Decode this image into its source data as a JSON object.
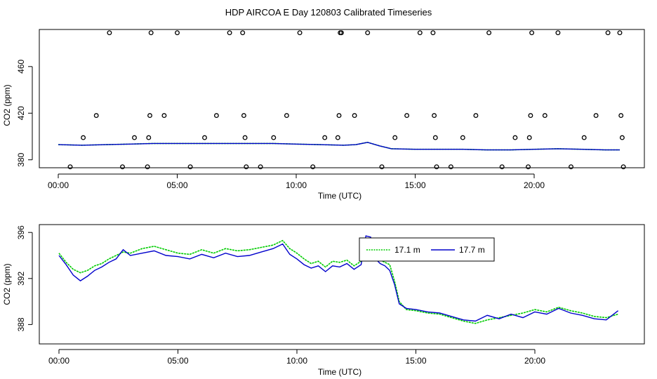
{
  "title": "HDP AIRCOA E  Day 120803  Calibrated Timeseries",
  "colors": {
    "green": "#00cc00",
    "blue": "#0000cc",
    "axis": "#000000"
  },
  "chart_data": [
    {
      "type": "line+scatter",
      "xlabel": "Time (UTC)",
      "ylabel": "CO2 (ppm)",
      "xlim": [
        0,
        24.5
      ],
      "ylim": [
        375,
        490
      ],
      "x_ticks": [
        0,
        5,
        10,
        15,
        20
      ],
      "x_tick_labels": [
        "00:00",
        "05:00",
        "10:00",
        "15:00",
        "20:00"
      ],
      "y_ticks": [
        380,
        420,
        460
      ],
      "y_tick_labels": [
        "380",
        "420",
        "460"
      ],
      "calibration_points": {
        "marker": "open-circle",
        "x": [
          0.5,
          1.05,
          1.6,
          2.15,
          2.7,
          3.2,
          3.75,
          3.8,
          3.85,
          3.9,
          4.45,
          5.0,
          5.55,
          6.15,
          6.65,
          7.2,
          7.75,
          7.8,
          7.85,
          7.9,
          8.5,
          9.05,
          9.6,
          10.15,
          10.7,
          11.2,
          11.75,
          11.8,
          11.85,
          11.9,
          12.45,
          13.0,
          13.6,
          14.15,
          14.65,
          15.2,
          15.75,
          15.8,
          15.85,
          15.9,
          16.5,
          17.0,
          17.55,
          18.1,
          18.65,
          19.2,
          19.75,
          19.8,
          19.85,
          19.9,
          20.45,
          21.0,
          21.55,
          22.1,
          22.6,
          23.1,
          23.6,
          23.65,
          23.7,
          23.75
        ],
        "y": [
          374,
          399,
          418,
          489,
          374,
          399,
          374,
          399,
          418,
          489,
          418,
          489,
          374,
          399,
          418,
          489,
          489,
          418,
          399,
          374,
          374,
          399,
          418,
          489,
          374,
          399,
          399,
          418,
          489,
          489,
          418,
          489,
          374,
          399,
          418,
          489,
          489,
          418,
          399,
          374,
          374,
          399,
          418,
          489,
          374,
          399,
          374,
          399,
          418,
          489,
          418,
          489,
          374,
          399,
          418,
          489,
          489,
          418,
          399,
          374
        ]
      },
      "series": [
        {
          "name": "17.1 m",
          "color": "#00cc00",
          "x": [
            0,
            1,
            2,
            3,
            4,
            5,
            6,
            7,
            8,
            9,
            10,
            11,
            12,
            12.5,
            13,
            13.5,
            14,
            15,
            16,
            17,
            18,
            19,
            20,
            21,
            22,
            23,
            23.6
          ],
          "values": [
            393,
            392.5,
            393,
            393.5,
            394,
            394,
            394,
            394,
            394,
            394,
            393.5,
            393,
            392.5,
            393,
            395,
            392,
            389.5,
            389,
            389,
            389,
            388.5,
            388.5,
            389,
            389.5,
            389,
            388.5,
            388.5
          ]
        },
        {
          "name": "17.7 m",
          "color": "#0000cc",
          "x": [
            0,
            1,
            2,
            3,
            4,
            5,
            6,
            7,
            8,
            9,
            10,
            11,
            12,
            12.5,
            13,
            13.5,
            14,
            15,
            16,
            17,
            18,
            19,
            20,
            21,
            22,
            23,
            23.6
          ],
          "values": [
            393,
            392.5,
            393,
            393.5,
            394,
            394,
            394,
            394,
            394,
            394,
            393.5,
            393,
            392.5,
            393,
            395,
            392,
            389.5,
            389,
            389,
            389,
            388.5,
            388.5,
            389,
            389.5,
            389,
            388.5,
            388.5
          ]
        }
      ]
    },
    {
      "type": "line",
      "xlabel": "Time (UTC)",
      "ylabel": "CO2 (ppm)",
      "xlim": [
        -0.8,
        24.3
      ],
      "ylim": [
        386.5,
        396.5
      ],
      "x_ticks": [
        0,
        5,
        10,
        15,
        20
      ],
      "x_tick_labels": [
        "00:00",
        "05:00",
        "10:00",
        "15:00",
        "20:00"
      ],
      "y_ticks": [
        388,
        392,
        396
      ],
      "y_tick_labels": [
        "388",
        "392",
        "396"
      ],
      "legend": {
        "position": "top-center"
      },
      "series": [
        {
          "name": "17.1 m",
          "color": "#00cc00",
          "x": [
            0,
            0.3,
            0.6,
            0.9,
            1.2,
            1.5,
            1.8,
            2.1,
            2.4,
            2.7,
            3.0,
            3.5,
            4.0,
            4.5,
            5.0,
            5.5,
            6.0,
            6.5,
            7.0,
            7.5,
            8.0,
            8.5,
            9.0,
            9.4,
            9.7,
            10.0,
            10.3,
            10.6,
            10.9,
            11.2,
            11.5,
            11.8,
            12.1,
            12.4,
            12.7,
            12.9,
            13.1,
            13.3,
            13.5,
            13.7,
            13.9,
            14.1,
            14.3,
            14.6,
            15.0,
            15.5,
            16.0,
            16.5,
            17.0,
            17.5,
            18.0,
            18.5,
            19.0,
            19.5,
            20.0,
            20.5,
            21.0,
            21.5,
            22.0,
            22.5,
            23.0,
            23.5
          ],
          "values": [
            394.2,
            393.4,
            392.8,
            392.5,
            392.7,
            393.1,
            393.3,
            393.7,
            394.0,
            394.3,
            394.2,
            394.6,
            394.8,
            394.5,
            394.2,
            394.1,
            394.5,
            394.2,
            394.6,
            394.4,
            394.5,
            394.7,
            394.9,
            395.3,
            394.6,
            394.2,
            393.7,
            393.3,
            393.5,
            393.0,
            393.5,
            393.4,
            393.6,
            393.1,
            393.5,
            395.4,
            395.3,
            394.0,
            393.6,
            393.4,
            393.2,
            391.8,
            390.0,
            389.3,
            389.2,
            389.0,
            388.9,
            388.6,
            388.3,
            388.1,
            388.4,
            388.6,
            388.8,
            389.0,
            389.3,
            389.1,
            389.5,
            389.2,
            389.0,
            388.7,
            388.6,
            388.9
          ]
        },
        {
          "name": "17.7 m",
          "color": "#0000cc",
          "x": [
            0,
            0.3,
            0.6,
            0.9,
            1.2,
            1.5,
            1.8,
            2.1,
            2.4,
            2.7,
            3.0,
            3.5,
            4.0,
            4.5,
            5.0,
            5.5,
            6.0,
            6.5,
            7.0,
            7.5,
            8.0,
            8.5,
            9.0,
            9.4,
            9.7,
            10.0,
            10.3,
            10.6,
            10.9,
            11.2,
            11.5,
            11.8,
            12.1,
            12.4,
            12.7,
            12.9,
            13.1,
            13.3,
            13.5,
            13.7,
            13.9,
            14.1,
            14.3,
            14.6,
            15.0,
            15.5,
            16.0,
            16.5,
            17.0,
            17.5,
            18.0,
            18.5,
            19.0,
            19.5,
            20.0,
            20.5,
            21.0,
            21.5,
            22.0,
            22.5,
            23.0,
            23.5
          ],
          "values": [
            394.0,
            393.2,
            392.3,
            391.8,
            392.2,
            392.7,
            393.0,
            393.4,
            393.7,
            394.5,
            394.0,
            394.2,
            394.4,
            394.0,
            393.9,
            393.7,
            394.1,
            393.8,
            394.2,
            393.9,
            394.0,
            394.3,
            394.6,
            395.0,
            394.1,
            393.7,
            393.2,
            392.9,
            393.1,
            392.6,
            393.1,
            393.0,
            393.3,
            392.8,
            393.2,
            395.7,
            395.6,
            393.7,
            393.3,
            393.1,
            392.7,
            391.5,
            389.8,
            389.4,
            389.3,
            389.1,
            389.0,
            388.7,
            388.4,
            388.3,
            388.8,
            388.5,
            388.9,
            388.6,
            389.1,
            388.9,
            389.4,
            389.0,
            388.8,
            388.5,
            388.4,
            389.2
          ]
        }
      ]
    }
  ]
}
